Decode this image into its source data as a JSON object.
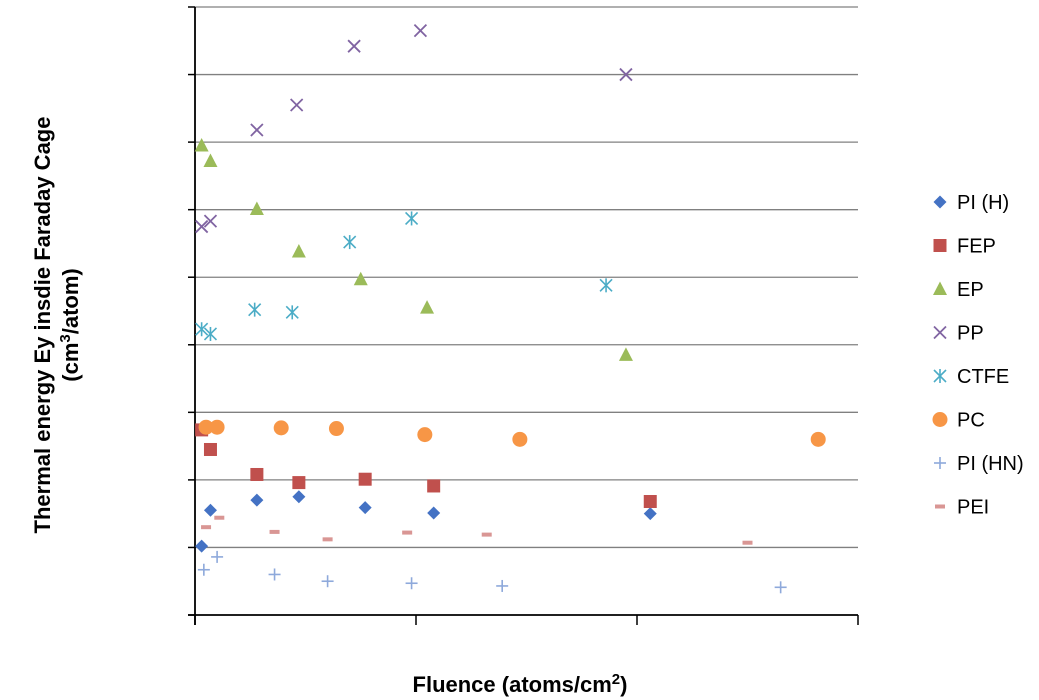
{
  "chart_data": {
    "type": "scatter",
    "xlabel": "Fluence (atoms/cm",
    "xlabel_sup": "2",
    "xlabel_end": ")",
    "ylabel_line1": "Thermal energy Ey insdie Faraday Cage",
    "ylabel_line2_pre": "(cm",
    "ylabel_line2_sup": "3",
    "ylabel_line2_post": "/atom)",
    "xlim": [
      0,
      3
    ],
    "ylim": [
      0,
      9
    ],
    "grid": "horizontal",
    "legend_position": "right",
    "series": [
      {
        "name": "PI (H)",
        "marker": "diamond",
        "color": "#4472C4",
        "points": [
          [
            0.03,
            1.02
          ],
          [
            0.07,
            1.55
          ],
          [
            0.28,
            1.7
          ],
          [
            0.47,
            1.75
          ],
          [
            0.77,
            1.59
          ],
          [
            1.08,
            1.51
          ],
          [
            2.06,
            1.5
          ]
        ]
      },
      {
        "name": "FEP",
        "marker": "square",
        "color": "#C0504D",
        "points": [
          [
            0.03,
            2.74
          ],
          [
            0.07,
            2.45
          ],
          [
            0.28,
            2.08
          ],
          [
            0.47,
            1.96
          ],
          [
            0.77,
            2.01
          ],
          [
            1.08,
            1.91
          ],
          [
            2.06,
            1.68
          ]
        ]
      },
      {
        "name": "EP",
        "marker": "triangle",
        "color": "#9BBB59",
        "points": [
          [
            0.03,
            6.95
          ],
          [
            0.07,
            6.72
          ],
          [
            0.28,
            6.01
          ],
          [
            0.47,
            5.38
          ],
          [
            0.75,
            4.97
          ],
          [
            1.05,
            4.55
          ],
          [
            1.95,
            3.85
          ]
        ]
      },
      {
        "name": "PP",
        "marker": "x",
        "color": "#8064A2",
        "points": [
          [
            0.03,
            5.75
          ],
          [
            0.07,
            5.83
          ],
          [
            0.28,
            7.18
          ],
          [
            0.46,
            7.55
          ],
          [
            0.72,
            8.42
          ],
          [
            1.02,
            8.65
          ],
          [
            1.95,
            8.0
          ]
        ]
      },
      {
        "name": "CTFE",
        "marker": "asterisk",
        "color": "#4BACC6",
        "points": [
          [
            0.03,
            4.23
          ],
          [
            0.07,
            4.16
          ],
          [
            0.27,
            4.52
          ],
          [
            0.44,
            4.48
          ],
          [
            0.7,
            5.52
          ],
          [
            0.98,
            5.87
          ],
          [
            1.86,
            4.88
          ]
        ]
      },
      {
        "name": "PC",
        "marker": "circle",
        "color": "#F79646",
        "points": [
          [
            0.05,
            2.78
          ],
          [
            0.1,
            2.78
          ],
          [
            0.39,
            2.77
          ],
          [
            0.64,
            2.76
          ],
          [
            1.04,
            2.67
          ],
          [
            1.47,
            2.6
          ],
          [
            2.82,
            2.6
          ]
        ]
      },
      {
        "name": "PI (HN)",
        "marker": "plus",
        "color": "#8EA9DB",
        "points": [
          [
            0.04,
            0.67
          ],
          [
            0.1,
            0.86
          ],
          [
            0.36,
            0.6
          ],
          [
            0.6,
            0.5
          ],
          [
            0.98,
            0.47
          ],
          [
            1.39,
            0.43
          ],
          [
            2.65,
            0.41
          ]
        ]
      },
      {
        "name": "PEI",
        "marker": "dash",
        "color": "#D99694",
        "points": [
          [
            0.05,
            1.3
          ],
          [
            0.11,
            1.44
          ],
          [
            0.36,
            1.23
          ],
          [
            0.6,
            1.12
          ],
          [
            0.96,
            1.22
          ],
          [
            1.32,
            1.19
          ],
          [
            2.5,
            1.07
          ]
        ]
      }
    ]
  }
}
